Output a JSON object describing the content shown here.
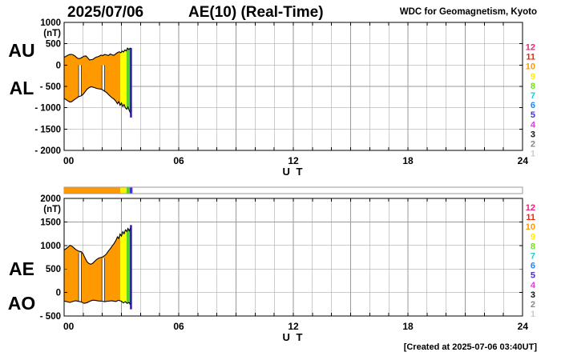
{
  "header": {
    "date": "2025/07/06",
    "title": "AE(10) (Real-Time)",
    "source": "WDC for Geomagnetism, Kyoto"
  },
  "footer": {
    "created": "[Created at 2025-07-06 03:40UT]"
  },
  "station_legend": {
    "items": [
      {
        "value": "12",
        "color": "#ee2277"
      },
      {
        "value": "11",
        "color": "#ff2200"
      },
      {
        "value": "10",
        "color": "#ff9900"
      },
      {
        "value": "9",
        "color": "#ffee00"
      },
      {
        "value": "8",
        "color": "#77dd22"
      },
      {
        "value": "7",
        "color": "#22cccc"
      },
      {
        "value": "6",
        "color": "#2288ee"
      },
      {
        "value": "5",
        "color": "#4433cc"
      },
      {
        "value": "4",
        "color": "#ee33ee"
      },
      {
        "value": "3",
        "color": "#111111"
      },
      {
        "value": "2",
        "color": "#888888"
      },
      {
        "value": "1",
        "color": "#cccccc"
      }
    ]
  },
  "availability_bar": {
    "range": [
      0,
      24
    ],
    "segments": [
      {
        "from": 0,
        "to": 2.94,
        "count": 10,
        "color": "#ff9900"
      },
      {
        "from": 2.94,
        "to": 3.27,
        "count": 9,
        "color": "#ffee00"
      },
      {
        "from": 3.27,
        "to": 3.44,
        "count": 8,
        "color": "#55d421"
      },
      {
        "from": 3.44,
        "to": 3.58,
        "count": 5,
        "color": "#4433cc"
      }
    ]
  },
  "chart_data": [
    {
      "type": "area",
      "title": "AE(10) (Real-Time)",
      "date": "2025/07/06",
      "left_labels": [
        "AU",
        "AL"
      ],
      "unit": "(nT)",
      "ylim": [
        -2000,
        1000
      ],
      "yticks": [
        {
          "v": 1000,
          "label": "1000"
        },
        {
          "v": 500,
          "label": "500"
        },
        {
          "v": 0,
          "label": "0"
        },
        {
          "v": -500,
          "label": "- 500"
        },
        {
          "v": -1000,
          "label": "- 1000"
        },
        {
          "v": -1500,
          "label": "- 1500"
        },
        {
          "v": -2000,
          "label": "- 2000"
        }
      ],
      "xlim": [
        0,
        24
      ],
      "xticks": [
        {
          "v": 0,
          "label": "00"
        },
        {
          "v": 6,
          "label": "06"
        },
        {
          "v": 12,
          "label": "12"
        },
        {
          "v": 18,
          "label": "18"
        },
        {
          "v": 24,
          "label": "24"
        }
      ],
      "xlabel": "U T",
      "grid": true,
      "fill_segments": [
        {
          "from": 0,
          "to": 2.94,
          "color": "#ff9900"
        },
        {
          "from": 2.94,
          "to": 3.27,
          "color": "#ffff00"
        },
        {
          "from": 3.27,
          "to": 3.5,
          "color": "#55d421"
        }
      ],
      "gaps": [
        {
          "x1": 0.76,
          "x2": 0.9,
          "top": 0
        },
        {
          "x1": 1.98,
          "x2": 2.12,
          "top": 0
        }
      ],
      "end_spike": {
        "x": 3.5,
        "top": 400,
        "bottom": -1228,
        "color": "#2213a6"
      },
      "series": [
        {
          "name": "AU",
          "points": [
            [
              0,
              185
            ],
            [
              0.08,
              200
            ],
            [
              0.17,
              225
            ],
            [
              0.27,
              245
            ],
            [
              0.37,
              252
            ],
            [
              0.47,
              240
            ],
            [
              0.57,
              210
            ],
            [
              0.67,
              172
            ],
            [
              0.76,
              150
            ],
            [
              0.85,
              158
            ],
            [
              0.95,
              182
            ],
            [
              1.05,
              208
            ],
            [
              1.15,
              212
            ],
            [
              1.24,
              165
            ],
            [
              1.33,
              120
            ],
            [
              1.42,
              126
            ],
            [
              1.52,
              138
            ],
            [
              1.62,
              172
            ],
            [
              1.72,
              192
            ],
            [
              1.82,
              204
            ],
            [
              1.92,
              232
            ],
            [
              2.02,
              222
            ],
            [
              2.12,
              248
            ],
            [
              2.22,
              238
            ],
            [
              2.32,
              224
            ],
            [
              2.42,
              262
            ],
            [
              2.52,
              236
            ],
            [
              2.62,
              232
            ],
            [
              2.72,
              268
            ],
            [
              2.82,
              298
            ],
            [
              2.9,
              312
            ],
            [
              2.97,
              288
            ],
            [
              3.04,
              328
            ],
            [
              3.11,
              305
            ],
            [
              3.18,
              355
            ],
            [
              3.25,
              330
            ],
            [
              3.32,
              398
            ],
            [
              3.39,
              365
            ],
            [
              3.45,
              392
            ],
            [
              3.5,
              400
            ]
          ]
        },
        {
          "name": "AL",
          "points": [
            [
              0,
              -780
            ],
            [
              0.1,
              -812
            ],
            [
              0.2,
              -842
            ],
            [
              0.3,
              -866
            ],
            [
              0.4,
              -858
            ],
            [
              0.5,
              -822
            ],
            [
              0.6,
              -792
            ],
            [
              0.7,
              -758
            ],
            [
              0.76,
              -742
            ],
            [
              0.9,
              -722
            ],
            [
              1.0,
              -682
            ],
            [
              1.1,
              -626
            ],
            [
              1.2,
              -566
            ],
            [
              1.3,
              -532
            ],
            [
              1.4,
              -510
            ],
            [
              1.5,
              -516
            ],
            [
              1.6,
              -530
            ],
            [
              1.7,
              -546
            ],
            [
              1.8,
              -556
            ],
            [
              1.9,
              -562
            ],
            [
              1.98,
              -572
            ],
            [
              2.12,
              -612
            ],
            [
              2.22,
              -642
            ],
            [
              2.32,
              -690
            ],
            [
              2.42,
              -732
            ],
            [
              2.52,
              -772
            ],
            [
              2.62,
              -802
            ],
            [
              2.72,
              -852
            ],
            [
              2.79,
              -906
            ],
            [
              2.86,
              -858
            ],
            [
              2.93,
              -942
            ],
            [
              3.0,
              -888
            ],
            [
              3.07,
              -972
            ],
            [
              3.14,
              -926
            ],
            [
              3.21,
              -1002
            ],
            [
              3.28,
              -1036
            ],
            [
              3.34,
              -984
            ],
            [
              3.41,
              -1062
            ],
            [
              3.45,
              -1100
            ],
            [
              3.5,
              -1150
            ]
          ]
        }
      ]
    },
    {
      "type": "area",
      "left_labels": [
        "AE",
        "AO"
      ],
      "unit": "(nT)",
      "ylim": [
        -500,
        2000
      ],
      "yticks": [
        {
          "v": 2000,
          "label": "2000"
        },
        {
          "v": 1500,
          "label": "1500"
        },
        {
          "v": 1000,
          "label": "1000"
        },
        {
          "v": 500,
          "label": "500"
        },
        {
          "v": 0,
          "label": "0"
        },
        {
          "v": -500,
          "label": "- 500"
        }
      ],
      "xlim": [
        0,
        24
      ],
      "xticks": [
        {
          "v": 0,
          "label": "00"
        },
        {
          "v": 6,
          "label": "06"
        },
        {
          "v": 12,
          "label": "12"
        },
        {
          "v": 18,
          "label": "18"
        },
        {
          "v": 24,
          "label": "24"
        }
      ],
      "xlabel": "U T",
      "grid": true,
      "fill_segments": [
        {
          "from": 0,
          "to": 2.94,
          "color": "#ff9900"
        },
        {
          "from": 2.94,
          "to": 3.27,
          "color": "#ffff00"
        },
        {
          "from": 3.27,
          "to": 3.5,
          "color": "#55d421"
        }
      ],
      "gaps": [
        {
          "x1": 0.76,
          "x2": 0.9,
          "top": 840
        },
        {
          "x1": 1.98,
          "x2": 2.12,
          "top": 730
        }
      ],
      "end_spike": {
        "x": 3.5,
        "top": 1432,
        "bottom": -358,
        "color": "#2213a6"
      },
      "series": [
        {
          "name": "AE",
          "points": [
            [
              0,
              905
            ],
            [
              0.1,
              932
            ],
            [
              0.2,
              962
            ],
            [
              0.3,
              1004
            ],
            [
              0.4,
              988
            ],
            [
              0.5,
              952
            ],
            [
              0.6,
              916
            ],
            [
              0.7,
              892
            ],
            [
              0.76,
              880
            ],
            [
              0.9,
              868
            ],
            [
              1.0,
              818
            ],
            [
              1.1,
              732
            ],
            [
              1.2,
              652
            ],
            [
              1.3,
              616
            ],
            [
              1.4,
              600
            ],
            [
              1.5,
              622
            ],
            [
              1.6,
              662
            ],
            [
              1.7,
              700
            ],
            [
              1.8,
              726
            ],
            [
              1.9,
              742
            ],
            [
              1.98,
              748
            ],
            [
              2.12,
              782
            ],
            [
              2.22,
              822
            ],
            [
              2.32,
              882
            ],
            [
              2.42,
              932
            ],
            [
              2.52,
              992
            ],
            [
              2.62,
              1042
            ],
            [
              2.72,
              1112
            ],
            [
              2.79,
              1182
            ],
            [
              2.86,
              1148
            ],
            [
              2.93,
              1242
            ],
            [
              3.0,
              1198
            ],
            [
              3.07,
              1292
            ],
            [
              3.14,
              1248
            ],
            [
              3.21,
              1332
            ],
            [
              3.28,
              1298
            ],
            [
              3.34,
              1362
            ],
            [
              3.41,
              1312
            ],
            [
              3.45,
              1352
            ],
            [
              3.5,
              1380
            ]
          ]
        },
        {
          "name": "AO",
          "points": [
            [
              0,
              -182
            ],
            [
              0.15,
              -196
            ],
            [
              0.3,
              -212
            ],
            [
              0.45,
              -192
            ],
            [
              0.6,
              -176
            ],
            [
              0.76,
              -188
            ],
            [
              0.9,
              -202
            ],
            [
              1.05,
              -232
            ],
            [
              1.2,
              -216
            ],
            [
              1.35,
              -186
            ],
            [
              1.5,
              -164
            ],
            [
              1.65,
              -170
            ],
            [
              1.8,
              -180
            ],
            [
              1.98,
              -186
            ],
            [
              2.12,
              -196
            ],
            [
              2.3,
              -186
            ],
            [
              2.5,
              -176
            ],
            [
              2.7,
              -192
            ],
            [
              2.85,
              -166
            ],
            [
              3.0,
              -186
            ],
            [
              3.1,
              -222
            ],
            [
              3.2,
              -196
            ],
            [
              3.3,
              -232
            ],
            [
              3.4,
              -212
            ],
            [
              3.45,
              -248
            ],
            [
              3.5,
              -260
            ]
          ]
        }
      ]
    }
  ]
}
